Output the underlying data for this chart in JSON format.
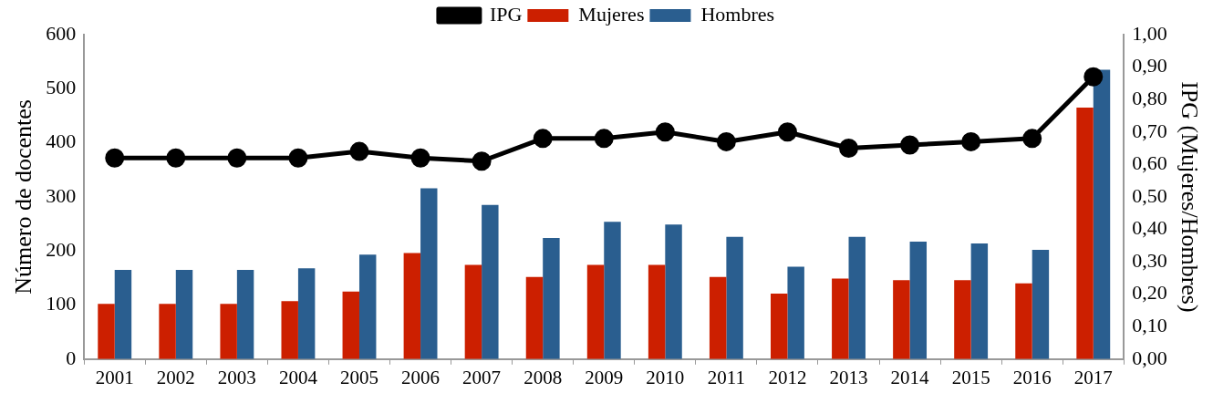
{
  "chart_data": {
    "type": "bar",
    "categories": [
      "2001",
      "2002",
      "2003",
      "2004",
      "2005",
      "2006",
      "2007",
      "2008",
      "2009",
      "2010",
      "2011",
      "2012",
      "2013",
      "2014",
      "2015",
      "2016",
      "2017"
    ],
    "series": [
      {
        "name": "Mujeres",
        "color": "#cc1f00",
        "values": [
          102,
          102,
          102,
          107,
          125,
          196,
          174,
          152,
          174,
          174,
          152,
          121,
          149,
          146,
          146,
          140,
          465
        ]
      },
      {
        "name": "Hombres",
        "color": "#2a5e8f",
        "values": [
          165,
          165,
          165,
          168,
          193,
          316,
          285,
          224,
          254,
          249,
          226,
          171,
          226,
          217,
          214,
          202,
          535
        ]
      },
      {
        "name": "IPG",
        "type": "line",
        "axis": "y2",
        "color": "#000000",
        "values": [
          0.62,
          0.62,
          0.62,
          0.62,
          0.64,
          0.62,
          0.61,
          0.68,
          0.68,
          0.7,
          0.67,
          0.7,
          0.65,
          0.66,
          0.67,
          0.68,
          0.87
        ]
      }
    ],
    "ylabel": "Número de docentes",
    "y2label": "IPG (Mujeres/Hombres)",
    "ylim": [
      0,
      600
    ],
    "yticks": [
      0,
      100,
      200,
      300,
      400,
      500,
      600
    ],
    "y2lim": [
      0,
      1
    ],
    "y2ticks": [
      {
        "value": 0,
        "label": "0,00"
      },
      {
        "value": 0.1,
        "label": "0,10"
      },
      {
        "value": 0.2,
        "label": "0,20"
      },
      {
        "value": 0.3,
        "label": "0,30"
      },
      {
        "value": 0.4,
        "label": "0,40"
      },
      {
        "value": 0.5,
        "label": "0,50"
      },
      {
        "value": 0.6,
        "label": "0,60"
      },
      {
        "value": 0.7,
        "label": "0,70"
      },
      {
        "value": 0.8,
        "label": "0,80"
      },
      {
        "value": 0.9,
        "label": "0,90"
      },
      {
        "value": 1,
        "label": "1,00"
      }
    ],
    "legend": "top",
    "grid": false,
    "marker": "circle"
  }
}
